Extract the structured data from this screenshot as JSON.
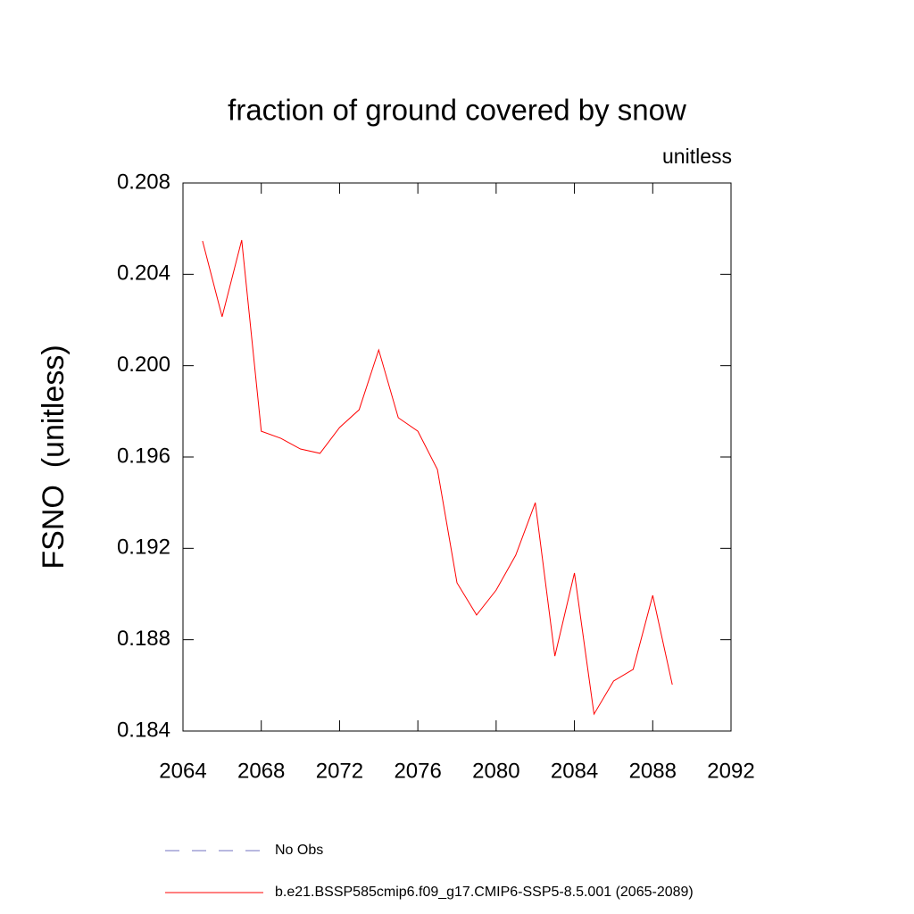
{
  "chart_data": {
    "type": "line",
    "title": "fraction of ground covered by snow",
    "subtitle": "unitless",
    "y_label": "FSNO  (unitless)",
    "x": [
      2065,
      2066,
      2067,
      2068,
      2069,
      2070,
      2071,
      2072,
      2073,
      2074,
      2075,
      2076,
      2077,
      2078,
      2079,
      2080,
      2081,
      2082,
      2083,
      2084,
      2085,
      2086,
      2087,
      2088,
      2089
    ],
    "series": [
      {
        "name": "No Obs",
        "color": "#7070c0",
        "dash": true,
        "values": [
          null,
          null,
          null,
          null,
          null,
          null,
          null,
          null,
          null,
          null,
          null,
          null,
          null,
          null,
          null,
          null,
          null,
          null,
          null,
          null,
          null,
          null,
          null,
          null,
          null
        ]
      },
      {
        "name": "b.e21.BSSP585cmip6.f09_g17.CMIP6-SSP5-8.5.001 (2065-2089)",
        "color": "#ff0000",
        "dash": false,
        "values": [
          0.20546,
          0.20214,
          0.2055,
          0.19713,
          0.19682,
          0.19635,
          0.19616,
          0.19729,
          0.19807,
          0.20069,
          0.19772,
          0.19713,
          0.19545,
          0.19049,
          0.18908,
          0.19017,
          0.1917,
          0.194,
          0.18728,
          0.19092,
          0.18474,
          0.18619,
          0.1867,
          0.18994,
          0.18603
        ]
      }
    ],
    "xlim": [
      2064,
      2092
    ],
    "xticks": [
      2064,
      2068,
      2072,
      2076,
      2080,
      2084,
      2088,
      2092
    ],
    "ylim": [
      0.184,
      0.208
    ],
    "yticks": [
      0.184,
      0.188,
      0.192,
      0.196,
      {
        "value": 0.2,
        "label": "0.200"
      },
      0.204,
      0.208
    ],
    "grid": false
  }
}
